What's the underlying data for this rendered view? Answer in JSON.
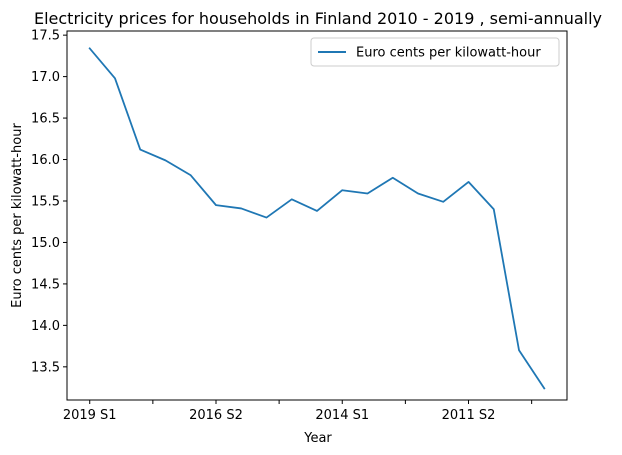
{
  "chart_data": {
    "type": "line",
    "title": "Electricity prices for households in Finland 2010 - 2019 , semi-annually",
    "xlabel": "Year",
    "ylabel": "Euro cents per kilowatt-hour",
    "x": [
      "2019 S1",
      "",
      "",
      "",
      "",
      "2016 S2",
      "",
      "",
      "",
      "",
      "2014 S1",
      "",
      "",
      "",
      "",
      "2011 S2",
      "",
      "",
      ""
    ],
    "x_tick_labels": [
      "2019 S1",
      "",
      "2016 S2",
      "",
      "2014 S1",
      "",
      "2011 S2",
      ""
    ],
    "x_tick_indices": [
      0,
      2.5,
      5,
      7.5,
      10,
      12.5,
      15,
      17.5
    ],
    "series": [
      {
        "name": "Euro cents per kilowatt-hour",
        "color": "#1f77b4",
        "values": [
          17.34,
          16.98,
          16.12,
          15.99,
          15.81,
          15.45,
          15.41,
          15.3,
          15.52,
          15.38,
          15.63,
          15.59,
          15.78,
          15.59,
          15.49,
          15.73,
          15.4,
          13.7,
          13.24
        ]
      }
    ],
    "y_ticks": [
      "13.5",
      "14.0",
      "14.5",
      "15.0",
      "15.5",
      "16.0",
      "16.5",
      "17.0",
      "17.5"
    ],
    "ylim": [
      13.1,
      17.55
    ],
    "xlim": [
      -0.9,
      18.9
    ],
    "grid": false,
    "legend_position": "upper right"
  }
}
